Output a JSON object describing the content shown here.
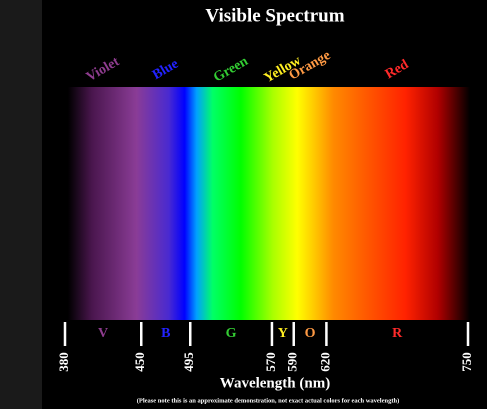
{
  "chart_data": {
    "type": "spectrum",
    "title": "Visible Spectrum",
    "x_label": "Wavelength (nm)",
    "note": "(Please note this is an approximate demonstration, not exact actual colors for each wavelength)",
    "xlim": [
      380,
      750
    ],
    "xticks": [
      380,
      450,
      495,
      570,
      590,
      620,
      750
    ],
    "series": [
      {
        "name": "Violet",
        "label": "V",
        "color": "#8e3c8e"
      },
      {
        "name": "Blue",
        "label": "B",
        "color": "#2222ff"
      },
      {
        "name": "Green",
        "label": "G",
        "color": "#33cc33"
      },
      {
        "name": "Yellow",
        "label": "Y",
        "color": "#ffee22"
      },
      {
        "name": "Orange",
        "label": "O",
        "color": "#ff9a44"
      },
      {
        "name": "Red",
        "label": "R",
        "color": "#ff2a2a"
      }
    ]
  }
}
